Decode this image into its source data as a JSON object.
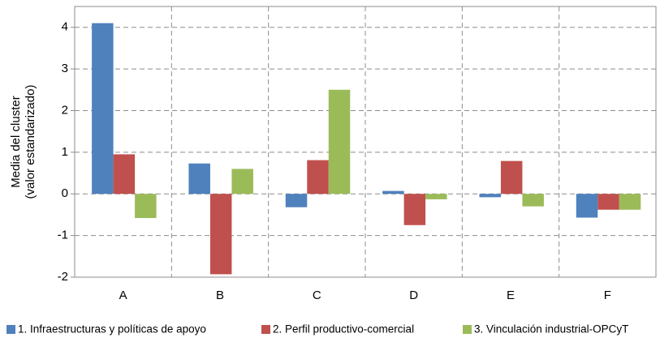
{
  "chart_data": {
    "type": "bar",
    "y_label": [
      "Media del cluster",
      "(valor estandarizado)"
    ],
    "categories": [
      "A",
      "B",
      "C",
      "D",
      "E",
      "F"
    ],
    "series": [
      {
        "name": "1. Infraestructuras y políticas de apoyo",
        "color": "#4f81bd",
        "values": [
          4.1,
          0.73,
          -0.32,
          0.07,
          -0.08,
          -0.57
        ]
      },
      {
        "name": "2. Perfil productivo-comercial",
        "color": "#c0504d",
        "values": [
          0.95,
          -1.93,
          0.81,
          -0.75,
          0.79,
          -0.38
        ]
      },
      {
        "name": "3. Vinculación industrial-OPCyT",
        "color": "#9bbb59",
        "values": [
          -0.58,
          0.6,
          2.5,
          -0.13,
          -0.3,
          -0.38
        ]
      }
    ],
    "ylim": [
      -2,
      4.5
    ],
    "yticks": [
      -2,
      -1,
      0,
      1,
      2,
      3,
      4
    ],
    "grid": true,
    "legend": "bottom"
  }
}
